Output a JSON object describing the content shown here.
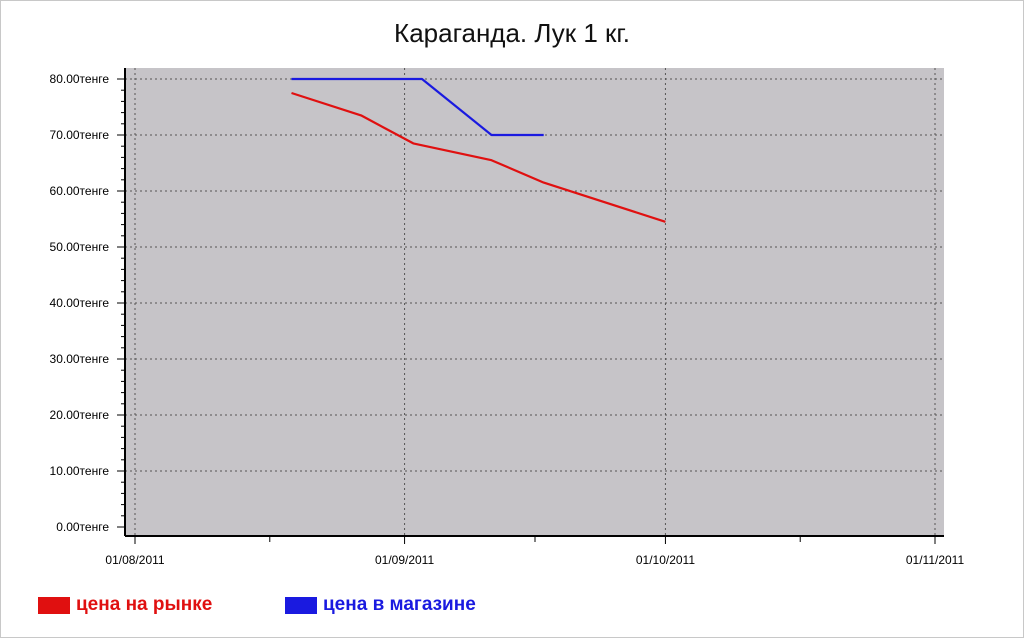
{
  "chart_data": {
    "type": "line",
    "title": "Караганда. Лук 1 кг.",
    "xlabel": "",
    "ylabel": "",
    "ylim": [
      0,
      80
    ],
    "y_ticks": [
      {
        "value": 0,
        "label": "0.00тенге"
      },
      {
        "value": 10,
        "label": "10.00тенге"
      },
      {
        "value": 20,
        "label": "20.00тенге"
      },
      {
        "value": 30,
        "label": "30.00тенге"
      },
      {
        "value": 40,
        "label": "40.00тенге"
      },
      {
        "value": 50,
        "label": "50.00тенге"
      },
      {
        "value": 60,
        "label": "60.00тенге"
      },
      {
        "value": 70,
        "label": "70.00тенге"
      },
      {
        "value": 80,
        "label": "80.00тенге"
      }
    ],
    "xlim": [
      "2011-08-01",
      "2011-11-01"
    ],
    "x_ticks": [
      {
        "value": "2011-08-01",
        "label": "01/08/2011"
      },
      {
        "value": "2011-09-01",
        "label": "01/09/2011"
      },
      {
        "value": "2011-10-01",
        "label": "01/10/2011"
      },
      {
        "value": "2011-11-01",
        "label": "01/11/2011"
      }
    ],
    "grid": true,
    "legend_position": "bottom-left",
    "series": [
      {
        "name": "цена на рынке",
        "color": "#e01010",
        "points": [
          {
            "x": "2011-08-19",
            "y": 77.5
          },
          {
            "x": "2011-08-27",
            "y": 73.5
          },
          {
            "x": "2011-09-02",
            "y": 68.5
          },
          {
            "x": "2011-09-11",
            "y": 65.5
          },
          {
            "x": "2011-09-17",
            "y": 61.5
          },
          {
            "x": "2011-10-01",
            "y": 54.5
          }
        ]
      },
      {
        "name": "цена в магазине",
        "color": "#1a1ae0",
        "points": [
          {
            "x": "2011-08-19",
            "y": 80
          },
          {
            "x": "2011-09-03",
            "y": 80
          },
          {
            "x": "2011-09-11",
            "y": 70
          },
          {
            "x": "2011-09-17",
            "y": 70
          }
        ]
      }
    ]
  }
}
